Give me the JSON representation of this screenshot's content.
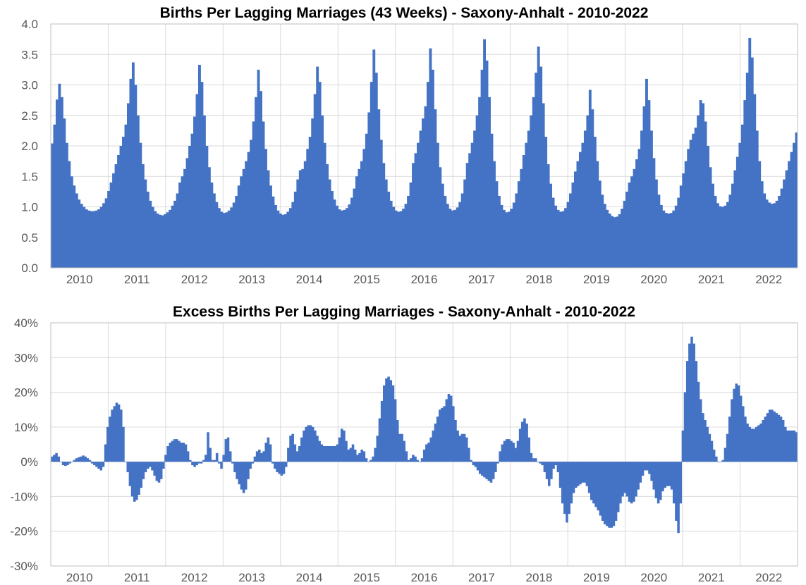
{
  "colors": {
    "bar": "#4472c4",
    "grid": "#d9d9d9",
    "tick_text": "#595959",
    "title": "#000000"
  },
  "chart_data": [
    {
      "type": "bar",
      "title": "Births Per Lagging Marriages (43 Weeks) - Saxony-Anhalt - 2010-2022",
      "xlabel": "",
      "ylabel": "",
      "ylim": [
        0,
        4.0
      ],
      "y_ticks": [
        "0.0",
        "0.5",
        "1.0",
        "1.5",
        "2.0",
        "2.5",
        "3.0",
        "3.5",
        "4.0"
      ],
      "x_ticks": [
        "2010",
        "2011",
        "2012",
        "2013",
        "2014",
        "2015",
        "2016",
        "2017",
        "2018",
        "2019",
        "2020",
        "2021",
        "2022"
      ],
      "grid": true,
      "frequency": "weekly",
      "x_start": "2010-W01",
      "x_end": "2022-W52",
      "series": [
        {
          "values": [
            2.04,
            2.35,
            2.76,
            3.02,
            2.8,
            2.45,
            2.05,
            1.75,
            1.5,
            1.35,
            1.22,
            1.12,
            1.05,
            1.0,
            0.96,
            0.94,
            0.93,
            0.93,
            0.94,
            0.96,
            1.0,
            1.06,
            1.14,
            1.26,
            1.4,
            1.55,
            1.7,
            1.85,
            2.0,
            2.15,
            2.35,
            2.7,
            3.1,
            3.37,
            3.0,
            2.5,
            2.05,
            1.7,
            1.45,
            1.25,
            1.1,
            1.0,
            0.93,
            0.89,
            0.87,
            0.86,
            0.88,
            0.91,
            0.95,
            1.02,
            1.1,
            1.22,
            1.4,
            1.5,
            1.62,
            1.8,
            2.0,
            2.2,
            2.48,
            2.85,
            3.33,
            3.05,
            2.5,
            2.0,
            1.65,
            1.4,
            1.22,
            1.08,
            0.98,
            0.92,
            0.9,
            0.91,
            0.94,
            0.99,
            1.07,
            1.18,
            1.35,
            1.5,
            1.62,
            1.75,
            1.9,
            2.1,
            2.4,
            2.8,
            3.25,
            2.9,
            2.4,
            1.95,
            1.6,
            1.35,
            1.17,
            1.03,
            0.94,
            0.89,
            0.87,
            0.88,
            0.92,
            0.98,
            1.08,
            1.25,
            1.45,
            1.6,
            1.62,
            1.75,
            1.95,
            2.15,
            2.45,
            2.85,
            3.3,
            3.05,
            2.5,
            2.05,
            1.7,
            1.45,
            1.26,
            1.12,
            1.02,
            0.96,
            0.94,
            0.95,
            0.98,
            1.04,
            1.15,
            1.3,
            1.5,
            1.62,
            1.75,
            1.95,
            2.2,
            2.55,
            3.05,
            3.58,
            3.2,
            2.6,
            2.1,
            1.72,
            1.45,
            1.25,
            1.1,
            1.0,
            0.94,
            0.92,
            0.93,
            0.97,
            1.05,
            1.18,
            1.4,
            1.72,
            1.88,
            2.05,
            2.25,
            2.45,
            2.65,
            3.05,
            3.6,
            3.25,
            2.6,
            2.05,
            1.65,
            1.38,
            1.18,
            1.05,
            0.97,
            0.94,
            0.95,
            0.99,
            1.08,
            1.22,
            1.45,
            1.72,
            1.88,
            2.05,
            2.25,
            2.5,
            2.8,
            3.25,
            3.75,
            3.4,
            2.8,
            2.2,
            1.75,
            1.42,
            1.18,
            1.03,
            0.95,
            0.91,
            0.92,
            0.97,
            1.07,
            1.22,
            1.42,
            1.62,
            1.85,
            2.05,
            2.25,
            2.5,
            2.8,
            3.2,
            3.63,
            3.3,
            2.7,
            2.15,
            1.7,
            1.38,
            1.15,
            1.02,
            0.95,
            0.92,
            0.93,
            0.98,
            1.08,
            1.22,
            1.4,
            1.58,
            1.75,
            1.9,
            2.05,
            2.25,
            2.5,
            2.92,
            2.6,
            2.15,
            1.75,
            1.43,
            1.2,
            1.05,
            0.95,
            0.89,
            0.85,
            0.83,
            0.84,
            0.88,
            0.97,
            1.1,
            1.25,
            1.4,
            1.5,
            1.62,
            1.78,
            1.95,
            2.25,
            2.65,
            3.1,
            2.75,
            2.25,
            1.8,
            1.45,
            1.2,
            1.03,
            0.94,
            0.9,
            0.89,
            0.9,
            0.94,
            1.02,
            1.15,
            1.35,
            1.55,
            1.75,
            1.95,
            2.1,
            2.2,
            2.3,
            2.5,
            2.75,
            2.7,
            2.4,
            2.0,
            1.65,
            1.38,
            1.18,
            1.06,
            1.01,
            1.0,
            1.02,
            1.08,
            1.2,
            1.38,
            1.6,
            1.82,
            2.05,
            2.35,
            2.75,
            3.2,
            3.77,
            3.45,
            2.85,
            2.25,
            1.75,
            1.42,
            1.22,
            1.12,
            1.07,
            1.05,
            1.06,
            1.1,
            1.18,
            1.3,
            1.45,
            1.6,
            1.75,
            1.9,
            2.05,
            2.22
          ]
        }
      ]
    },
    {
      "type": "bar",
      "title": "Excess Births Per Lagging Marriages - Saxony-Anhalt - 2010-2022",
      "xlabel": "",
      "ylabel": "",
      "ylim": [
        -30,
        40
      ],
      "unit": "%",
      "y_ticks": [
        "-30%",
        "-20%",
        "-10%",
        "0%",
        "10%",
        "20%",
        "30%",
        "40%"
      ],
      "x_ticks": [
        "2010",
        "2011",
        "2012",
        "2013",
        "2014",
        "2015",
        "2016",
        "2017",
        "2018",
        "2019",
        "2020",
        "2021",
        "2022"
      ],
      "grid": true,
      "frequency": "weekly",
      "x_start": "2010-W01",
      "x_end": "2022-W52",
      "series": [
        {
          "values": [
            1.5,
            2.0,
            2.5,
            1.5,
            0.0,
            -1.0,
            -1.2,
            -1.0,
            -0.5,
            0.0,
            0.5,
            1.0,
            1.3,
            1.5,
            1.8,
            1.5,
            1.0,
            0.5,
            -0.5,
            -1.0,
            -1.5,
            -2.0,
            -2.5,
            -1.5,
            5.0,
            10.0,
            13.0,
            15.0,
            16.0,
            17.0,
            16.5,
            15.0,
            10.0,
            0.0,
            -3.0,
            -7.0,
            -10.0,
            -11.5,
            -11.0,
            -9.5,
            -7.5,
            -5.0,
            -3.0,
            -2.0,
            -1.5,
            -2.5,
            -4.0,
            -5.5,
            -6.0,
            -5.0,
            -2.0,
            2.0,
            4.5,
            5.5,
            6.0,
            6.5,
            6.5,
            6.0,
            5.5,
            5.5,
            5.0,
            3.0,
            0.5,
            -1.0,
            -1.5,
            -1.0,
            -0.5,
            -0.5,
            0.5,
            2.0,
            8.5,
            4.0,
            0.5,
            0.5,
            2.5,
            -0.5,
            -2.0,
            2.0,
            6.5,
            7.0,
            3.0,
            -0.5,
            -3.0,
            -5.0,
            -6.5,
            -8.0,
            -9.0,
            -8.0,
            -5.0,
            -2.0,
            -0.5,
            1.5,
            3.0,
            3.5,
            2.5,
            3.0,
            5.5,
            7.0,
            5.0,
            -0.5,
            -2.0,
            -3.0,
            -3.5,
            -4.0,
            -3.5,
            -1.5,
            4.0,
            7.5,
            8.0,
            5.0,
            3.0,
            4.5,
            7.0,
            9.0,
            10.0,
            10.5,
            10.5,
            10.0,
            9.0,
            7.5,
            6.0,
            5.0,
            4.5,
            4.5,
            4.5,
            4.5,
            4.5,
            4.5,
            5.0,
            7.0,
            9.5,
            9.0,
            6.0,
            3.5,
            4.0,
            5.0,
            3.5,
            2.0,
            2.5,
            3.5,
            3.0,
            1.0,
            0.0,
            0.5,
            1.5,
            4.0,
            7.5,
            12.5,
            17.5,
            22.0,
            24.0,
            24.5,
            23.5,
            22.0,
            18.0,
            12.0,
            8.0,
            8.0,
            6.0,
            3.0,
            0.5,
            1.0,
            2.0,
            1.5,
            0.5,
            0.0,
            1.0,
            3.5,
            5.0,
            5.5,
            7.0,
            9.0,
            11.0,
            13.0,
            15.0,
            15.5,
            16.0,
            18.0,
            19.5,
            19.0,
            16.0,
            12.0,
            9.0,
            7.5,
            8.0,
            8.0,
            7.0,
            4.0,
            0.5,
            -1.0,
            -1.5,
            -2.5,
            -3.5,
            -4.0,
            -4.5,
            -5.0,
            -5.5,
            -6.0,
            -5.0,
            -3.0,
            -0.5,
            3.0,
            5.0,
            6.0,
            6.5,
            6.5,
            6.0,
            5.5,
            4.0,
            6.0,
            9.5,
            11.5,
            12.5,
            11.0,
            7.0,
            2.5,
            1.0,
            1.0,
            0.0,
            -0.5,
            -1.0,
            -3.0,
            -5.0,
            -7.0,
            -5.0,
            -2.0,
            -1.0,
            -3.0,
            -7.5,
            -12.0,
            -15.0,
            -17.5,
            -15.0,
            -12.0,
            -9.0,
            -7.5,
            -7.0,
            -6.5,
            -6.0,
            -6.0,
            -7.0,
            -9.0,
            -11.0,
            -12.0,
            -13.0,
            -14.0,
            -15.5,
            -17.0,
            -18.0,
            -18.5,
            -19.0,
            -19.0,
            -18.5,
            -17.0,
            -14.5,
            -12.0,
            -10.0,
            -9.0,
            -10.0,
            -11.5,
            -12.0,
            -11.5,
            -10.0,
            -8.0,
            -6.0,
            -4.0,
            -2.5,
            -2.5,
            -3.5,
            -5.5,
            -8.0,
            -10.5,
            -12.0,
            -11.0,
            -8.5,
            -7.5,
            -7.0,
            -7.0,
            -8.0,
            -12.0,
            -17.0,
            -20.5,
            -12.0,
            9.0,
            20.0,
            29.0,
            34.0,
            36.0,
            34.0,
            29.0,
            23.0,
            18.0,
            14.0,
            12.0,
            10.0,
            8.0,
            6.0,
            3.5,
            1.5,
            0.0,
            0.0,
            0.5,
            4.0,
            8.0,
            13.0,
            18.0,
            21.0,
            22.5,
            22.0,
            19.0,
            16.0,
            13.0,
            11.0,
            10.0,
            9.5,
            9.5,
            10.0,
            10.5,
            11.0,
            12.0,
            13.0,
            14.0,
            15.0,
            15.0,
            14.5,
            14.0,
            13.5,
            13.0,
            12.0,
            10.0,
            9.0,
            9.0,
            9.0,
            9.0,
            8.5
          ]
        }
      ]
    }
  ]
}
